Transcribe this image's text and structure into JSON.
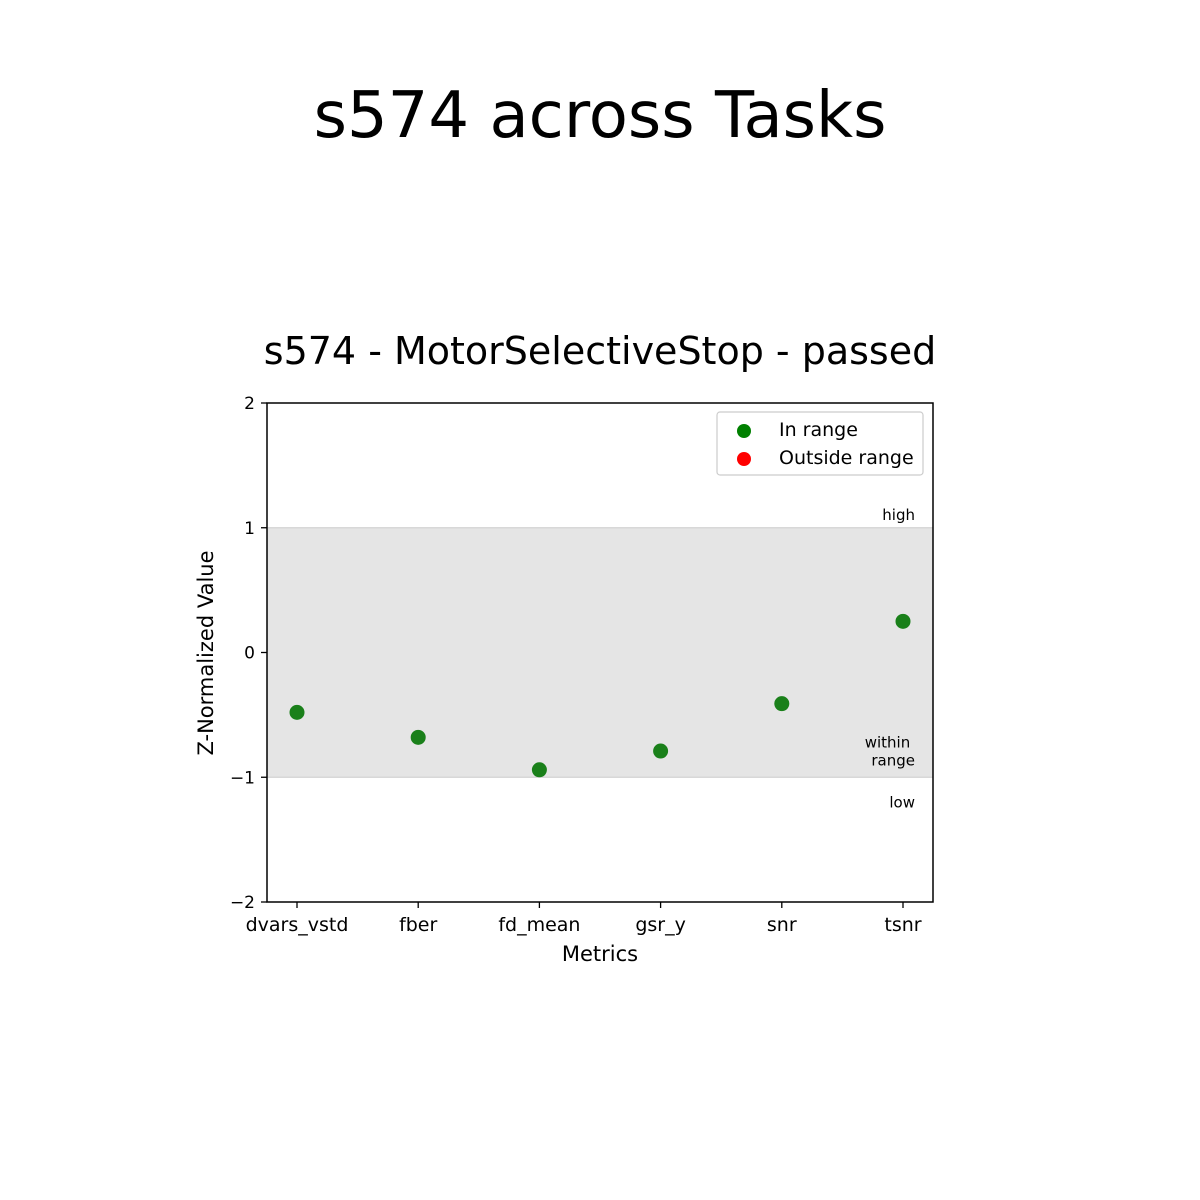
{
  "figure": {
    "title": "s574 across Tasks"
  },
  "chart_data": {
    "type": "scatter",
    "title": "s574 - MotorSelectiveStop - passed",
    "xlabel": "Metrics",
    "ylabel": "Z-Normalized Value",
    "categories": [
      "dvars_vstd",
      "fber",
      "fd_mean",
      "gsr_y",
      "snr",
      "tsnr"
    ],
    "values": [
      -0.48,
      -0.68,
      -0.94,
      -0.79,
      -0.41,
      0.25
    ],
    "ylim": [
      -2,
      2
    ],
    "yticks": [
      -2,
      -1,
      0,
      1,
      2
    ],
    "ytick_labels": [
      "−2",
      "−1",
      "0",
      "1",
      "2"
    ],
    "grid": false,
    "range_band": {
      "low": -1,
      "high": 1,
      "color": "#e5e5e5"
    },
    "band_labels": {
      "high": "high",
      "within": [
        "within",
        "range"
      ],
      "low": "low"
    },
    "legend": {
      "placement": "top-right",
      "entries": [
        {
          "label": "In range",
          "color": "#008000"
        },
        {
          "label": "Outside range",
          "color": "#ff0000"
        }
      ]
    },
    "point_color": "#1a801a"
  }
}
